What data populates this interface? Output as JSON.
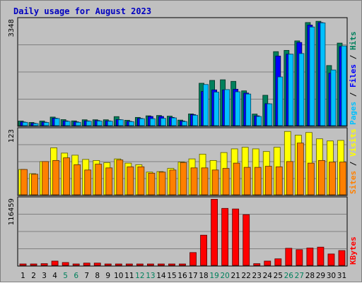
{
  "chart_data": {
    "type": "bar",
    "title": "Daily usage for August 2023",
    "categories": [
      "1",
      "2",
      "3",
      "4",
      "5",
      "6",
      "7",
      "8",
      "9",
      "10",
      "11",
      "12",
      "13",
      "14",
      "15",
      "16",
      "17",
      "18",
      "19",
      "20",
      "21",
      "22",
      "23",
      "24",
      "25",
      "26",
      "27",
      "28",
      "29",
      "30",
      "31"
    ],
    "weekend_days": [
      5,
      6,
      12,
      13,
      19,
      20,
      26,
      27
    ],
    "colors": {
      "hits": "#00805c",
      "files": "#0000ff",
      "pages": "#00c0ff",
      "visits": "#ffff00",
      "sites": "#ff8000",
      "kbytes": "#ff0000",
      "weekday_label": "#000000",
      "weekend_label": "#00805c",
      "title": "#0000c0"
    },
    "panels": [
      {
        "id": "top",
        "tick_label": "3348",
        "ylim": [
          0,
          3348
        ],
        "legend": [
          "Pages",
          "Files",
          "Hits"
        ],
        "series": [
          {
            "name": "Hits",
            "values": [
              145,
              100,
              145,
              270,
              190,
              150,
              185,
              185,
              185,
              285,
              170,
              260,
              310,
              320,
              300,
              175,
              370,
              1340,
              1430,
              1450,
              1400,
              1100,
              365,
              960,
              2340,
              2380,
              2680,
              3260,
              3300,
              1900,
              2610
            ]
          },
          {
            "name": "Files",
            "values": [
              115,
              75,
              110,
              235,
              150,
              120,
              150,
              160,
              150,
              190,
              135,
              230,
              290,
              290,
              260,
              145,
              350,
              1080,
              1130,
              1130,
              1150,
              1030,
              310,
              695,
              2200,
              2260,
              2630,
              3180,
              3260,
              1660,
              2500
            ]
          },
          {
            "name": "Pages",
            "values": [
              105,
              65,
              100,
              225,
              135,
              105,
              140,
              145,
              140,
              185,
              125,
              220,
              220,
              230,
              245,
              130,
              330,
              1300,
              1060,
              1140,
              1070,
              1000,
              290,
              690,
              1540,
              2260,
              2280,
              3120,
              3250,
              1760,
              2520
            ]
          }
        ]
      },
      {
        "id": "middle",
        "tick_label": "123",
        "ylim": [
          0,
          123
        ],
        "legend": [
          "Sites",
          "Visits"
        ],
        "series": [
          {
            "name": "Visits",
            "values": [
              48,
              40,
              63,
              89,
              79,
              75,
              67,
              65,
              61,
              68,
              60,
              57,
              43,
              44,
              50,
              62,
              68,
              77,
              65,
              80,
              87,
              90,
              87,
              82,
              90,
              120,
              113,
              118,
              106,
              102,
              103
            ]
          },
          {
            "name": "Sites",
            "values": [
              48,
              39,
              63,
              65,
              70,
              57,
              47,
              58,
              51,
              66,
              53,
              53,
              41,
              43,
              47,
              61,
              51,
              51,
              47,
              50,
              60,
              52,
              52,
              54,
              53,
              63,
              98,
              60,
              65,
              62,
              62
            ]
          }
        ]
      },
      {
        "id": "bottom",
        "tick_label": "116459",
        "ylim": [
          0,
          116459
        ],
        "legend": [
          "KBytes"
        ],
        "series": [
          {
            "name": "KBytes",
            "values": [
              2500,
              2500,
              3000,
              7500,
              5000,
              2500,
              4000,
              4000,
              1500,
              2000,
              1500,
              1500,
              1500,
              1500,
              1500,
              2000,
              22500,
              53000,
              116000,
              100000,
              99000,
              89000,
              3000,
              7500,
              11500,
              30000,
              27500,
              30500,
              32000,
              20000,
              26000
            ]
          }
        ]
      }
    ]
  }
}
